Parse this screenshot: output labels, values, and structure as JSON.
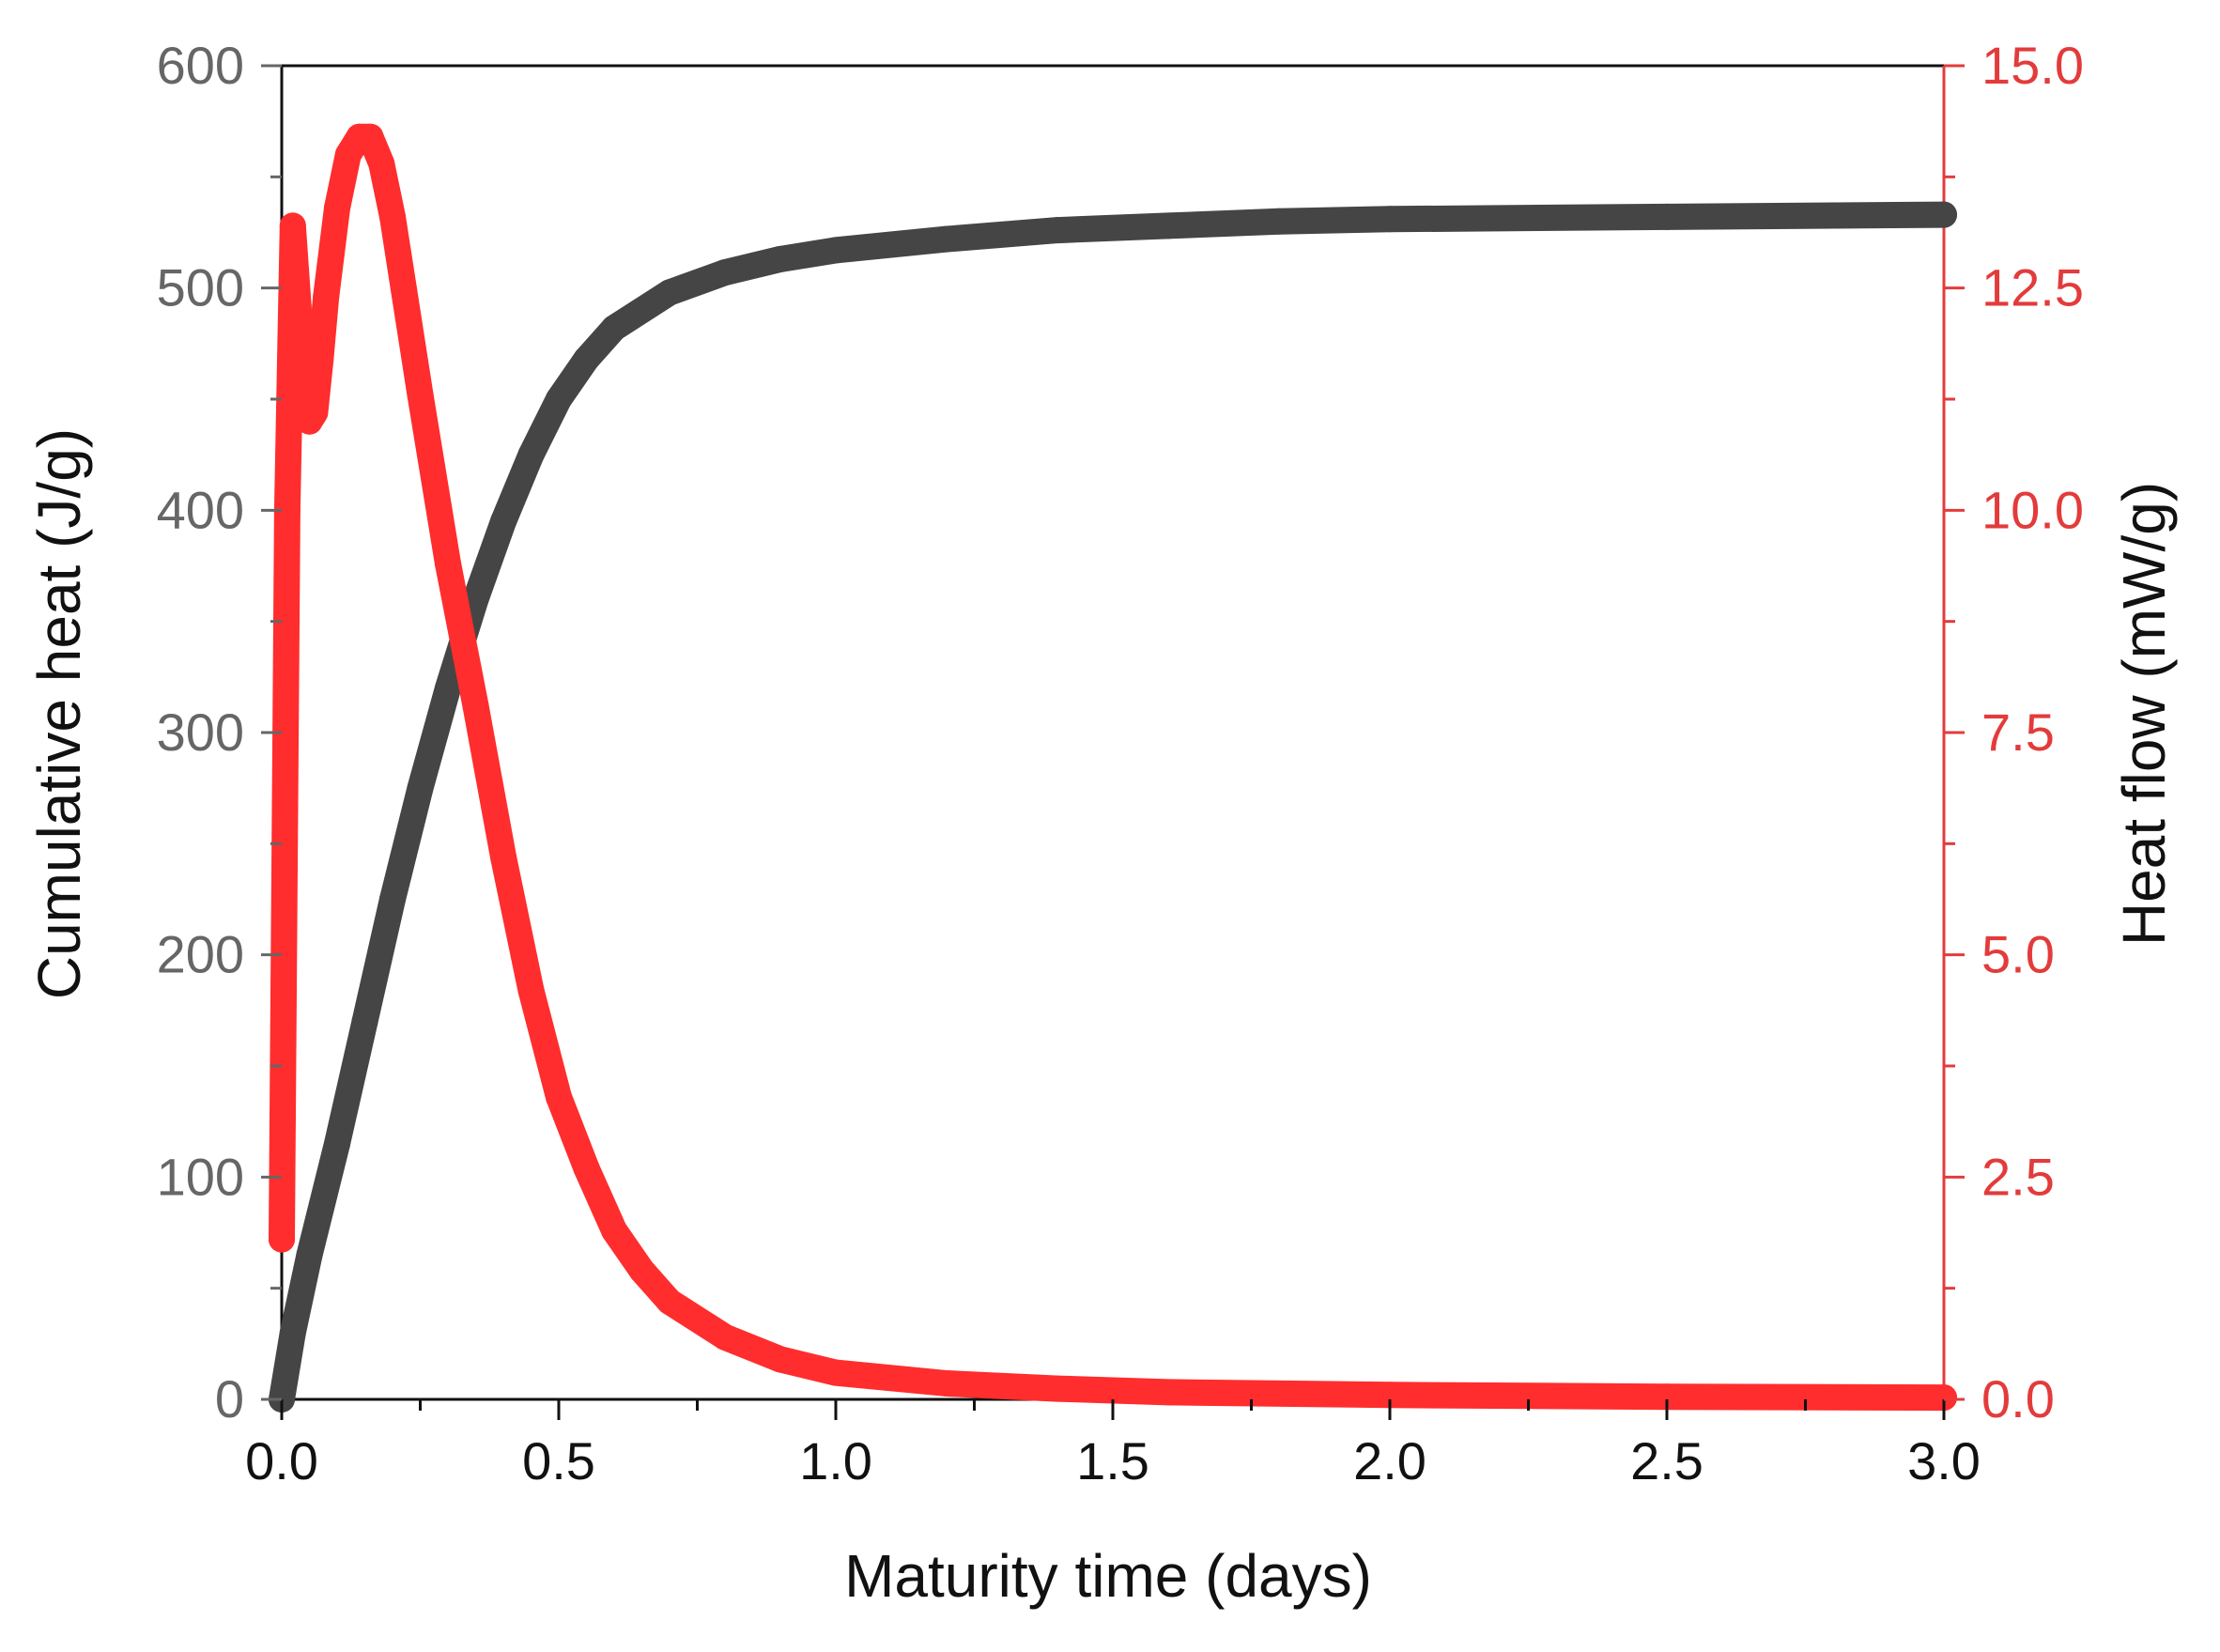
{
  "chart_data": {
    "type": "line",
    "title": "",
    "xlabel": "Maturity time (days)",
    "ylabel_left": "Cumulative heat (J/g)",
    "ylabel_right": "Heat flow (mW/g)",
    "xlim": [
      0,
      3
    ],
    "ylim_left": [
      0,
      600
    ],
    "ylim_right": [
      0,
      15
    ],
    "x_ticks": [
      "0.0",
      "0.5",
      "1.0",
      "1.5",
      "2.0",
      "2.5",
      "3.0"
    ],
    "y_left_ticks": [
      "0",
      "100",
      "200",
      "300",
      "400",
      "500",
      "600"
    ],
    "y_right_ticks": [
      "0.0",
      "2.5",
      "5.0",
      "7.5",
      "10.0",
      "12.5",
      "15.0"
    ],
    "grid": false,
    "legend": "none",
    "colors": {
      "cumulative": "#454545",
      "heatflow": "#ff2d2d",
      "left_axis": "#666666",
      "right_axis": "#e33b3b"
    },
    "series": [
      {
        "name": "Cumulative heat",
        "axis": "left",
        "x": [
          0,
          0.02,
          0.05,
          0.1,
          0.15,
          0.2,
          0.25,
          0.3,
          0.35,
          0.4,
          0.45,
          0.5,
          0.55,
          0.6,
          0.7,
          0.8,
          0.9,
          1.0,
          1.2,
          1.4,
          1.6,
          1.8,
          2.0,
          2.5,
          3.0
        ],
        "values": [
          0,
          30,
          65,
          115,
          170,
          225,
          275,
          320,
          360,
          395,
          425,
          450,
          468,
          482,
          498,
          507,
          513,
          517,
          522,
          526,
          528,
          530,
          531,
          532,
          533
        ]
      },
      {
        "name": "Heat flow",
        "axis": "right",
        "x": [
          0.0,
          0.01,
          0.02,
          0.03,
          0.04,
          0.05,
          0.06,
          0.07,
          0.08,
          0.1,
          0.12,
          0.14,
          0.16,
          0.18,
          0.2,
          0.22,
          0.25,
          0.3,
          0.35,
          0.4,
          0.45,
          0.5,
          0.55,
          0.6,
          0.65,
          0.7,
          0.8,
          0.9,
          1.0,
          1.2,
          1.4,
          1.6,
          2.0,
          2.5,
          3.0
        ],
        "values": [
          1.8,
          10.0,
          13.2,
          12.3,
          11.3,
          11.0,
          11.1,
          11.7,
          12.4,
          13.4,
          14.0,
          14.2,
          14.2,
          13.9,
          13.3,
          12.5,
          11.3,
          9.4,
          7.8,
          6.1,
          4.6,
          3.4,
          2.6,
          1.9,
          1.45,
          1.1,
          0.7,
          0.45,
          0.3,
          0.18,
          0.12,
          0.08,
          0.05,
          0.03,
          0.02
        ]
      }
    ]
  }
}
